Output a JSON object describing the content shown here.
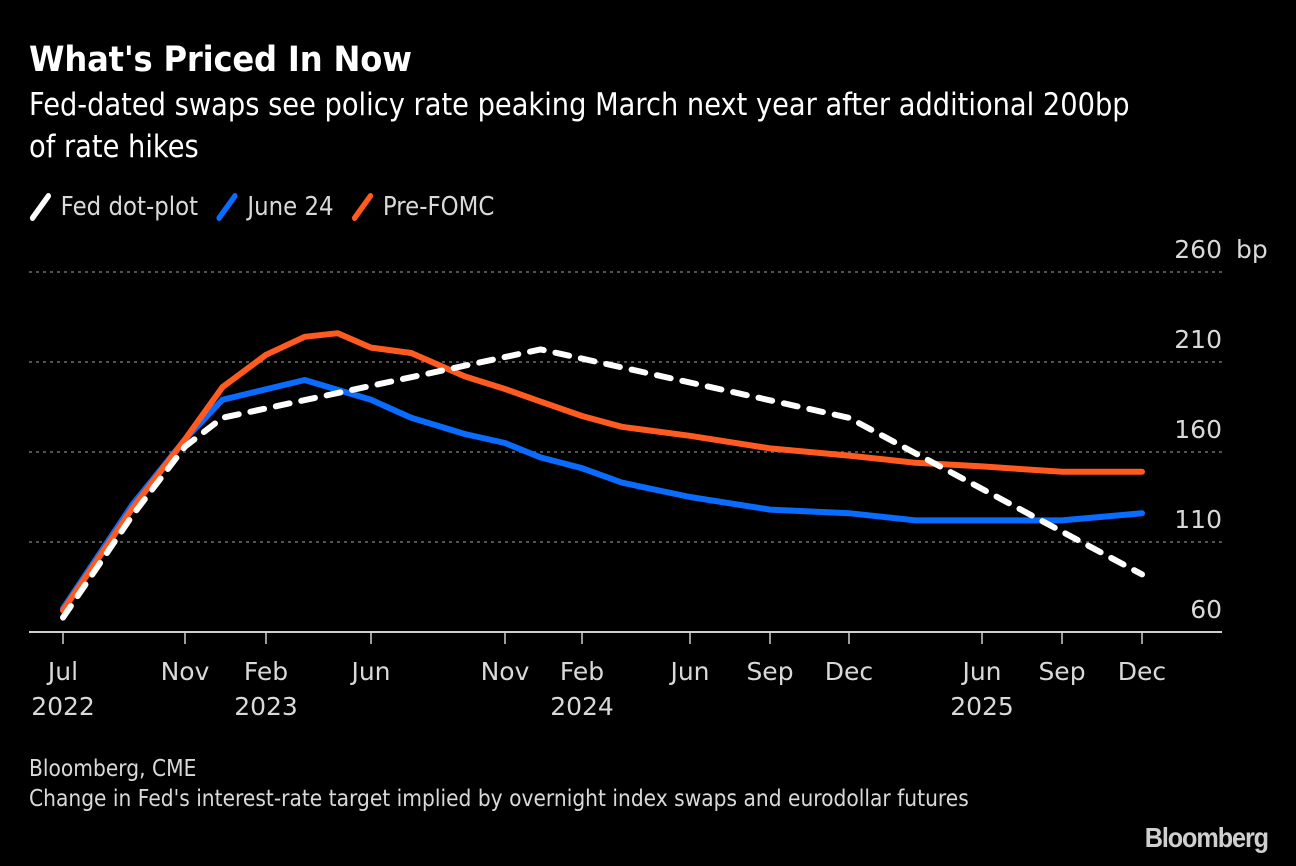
{
  "header": {
    "title": "What's Priced In Now",
    "subtitle": "Fed-dated swaps see policy rate peaking March next year after additional 200bp of rate hikes"
  },
  "legend": [
    {
      "label": "Fed dot-plot",
      "color": "#ffffff",
      "series": "dotplot"
    },
    {
      "label": "June 24",
      "color": "#0a6cff",
      "series": "june24"
    },
    {
      "label": "Pre-FOMC",
      "color": "#ff5a1f",
      "series": "prefomc"
    }
  ],
  "footer": {
    "source": "Bloomberg, CME",
    "note": "Change in Fed's interest-rate target implied by overnight index swaps and eurodollar futures",
    "logo": "Bloomberg"
  },
  "chart_data": {
    "type": "line",
    "title": "What's Priced In Now",
    "subtitle": "Fed-dated swaps see policy rate peaking March next year after additional 200bp of rate hikes",
    "xlabel": "",
    "ylabel": "bp",
    "y_unit_label": "bp",
    "ylim": [
      60,
      260
    ],
    "yticks": [
      60,
      110,
      160,
      210,
      260
    ],
    "grid": true,
    "legend_position": "top-left",
    "xticks": [
      {
        "date": "2022-07-27",
        "month": "Jul",
        "year": "2022"
      },
      {
        "date": "2022-11-02",
        "month": "Nov",
        "year": ""
      },
      {
        "date": "2023-02-01",
        "month": "Feb",
        "year": "2023"
      },
      {
        "date": "2023-06-14",
        "month": "Jun",
        "year": ""
      },
      {
        "date": "2023-11-01",
        "month": "Nov",
        "year": ""
      },
      {
        "date": "2024-01-31",
        "month": "Feb",
        "year": "2024"
      },
      {
        "date": "2024-06-12",
        "month": "Jun",
        "year": ""
      },
      {
        "date": "2024-09-18",
        "month": "Sep",
        "year": ""
      },
      {
        "date": "2024-12-18",
        "month": "Dec",
        "year": ""
      },
      {
        "date": "2025-06-18",
        "month": "Jun",
        "year": "2025"
      },
      {
        "date": "2025-09-17",
        "month": "Sep",
        "year": ""
      },
      {
        "date": "2025-12-10",
        "month": "Dec",
        "year": ""
      }
    ],
    "series": [
      {
        "name": "Fed dot-plot",
        "key": "dotplot",
        "color": "#ffffff",
        "dashed": true,
        "points": [
          [
            "2022-07-27",
            68
          ],
          [
            "2022-09-21",
            125
          ],
          [
            "2022-11-02",
            163
          ],
          [
            "2022-12-14",
            179
          ],
          [
            "2023-12-13",
            217
          ],
          [
            "2024-12-18",
            179
          ],
          [
            "2025-12-10",
            92
          ]
        ]
      },
      {
        "name": "June 24",
        "key": "june24",
        "color": "#0a6cff",
        "dashed": false,
        "points": [
          [
            "2022-07-27",
            73
          ],
          [
            "2022-09-21",
            131
          ],
          [
            "2022-11-02",
            167
          ],
          [
            "2022-12-14",
            189
          ],
          [
            "2023-03-22",
            200
          ],
          [
            "2023-06-14",
            189
          ],
          [
            "2023-07-26",
            179
          ],
          [
            "2023-09-20",
            170
          ],
          [
            "2023-11-01",
            165
          ],
          [
            "2023-12-13",
            157
          ],
          [
            "2024-01-31",
            151
          ],
          [
            "2024-03-20",
            143
          ],
          [
            "2024-06-12",
            135
          ],
          [
            "2024-09-18",
            128
          ],
          [
            "2024-12-18",
            126
          ],
          [
            "2025-03-19",
            122
          ],
          [
            "2025-06-18",
            122
          ],
          [
            "2025-09-17",
            122
          ],
          [
            "2025-12-10",
            126
          ]
        ]
      },
      {
        "name": "Pre-FOMC",
        "key": "prefomc",
        "color": "#ff5a1f",
        "dashed": false,
        "points": [
          [
            "2022-07-27",
            72
          ],
          [
            "2022-09-21",
            129
          ],
          [
            "2022-11-02",
            167
          ],
          [
            "2022-12-14",
            196
          ],
          [
            "2023-02-01",
            214
          ],
          [
            "2023-03-22",
            224
          ],
          [
            "2023-05-03",
            226
          ],
          [
            "2023-06-14",
            218
          ],
          [
            "2023-07-26",
            215
          ],
          [
            "2023-09-20",
            202
          ],
          [
            "2023-11-01",
            195
          ],
          [
            "2023-12-13",
            188
          ],
          [
            "2024-01-31",
            180
          ],
          [
            "2024-03-20",
            174
          ],
          [
            "2024-06-12",
            169
          ],
          [
            "2024-09-18",
            162
          ],
          [
            "2024-12-18",
            158
          ],
          [
            "2025-03-19",
            154
          ],
          [
            "2025-06-18",
            152
          ],
          [
            "2025-09-17",
            149
          ],
          [
            "2025-12-10",
            149
          ]
        ]
      }
    ]
  }
}
